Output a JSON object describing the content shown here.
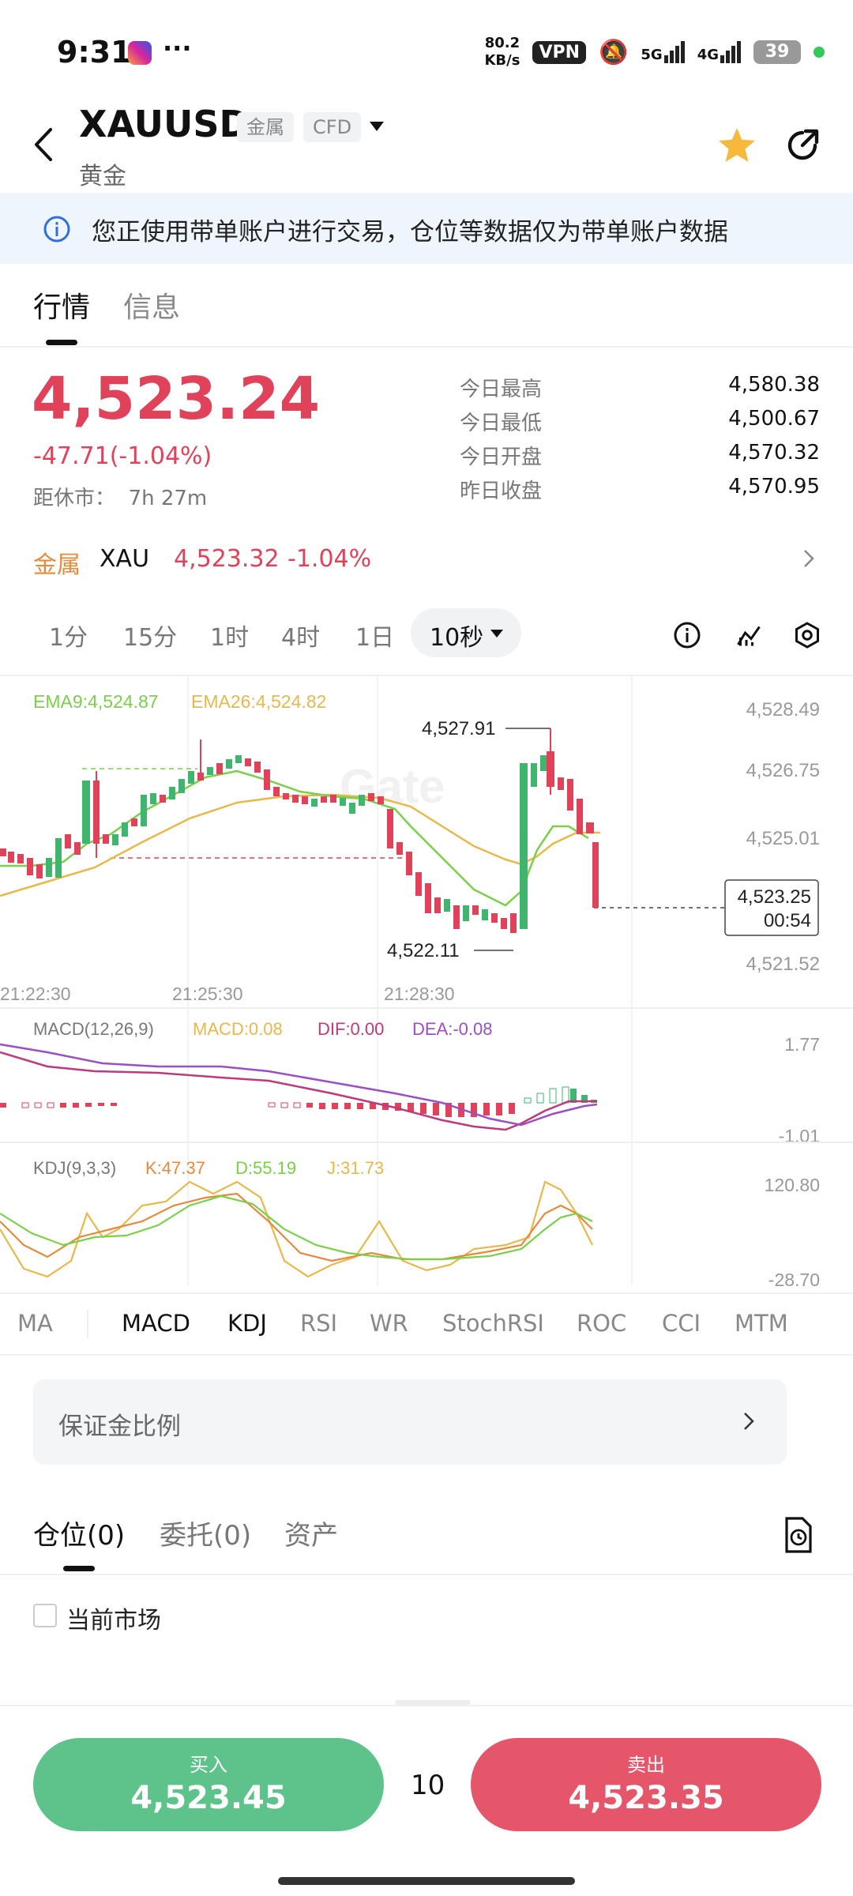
{
  "status_bar": {
    "time": "9:31",
    "more": "···",
    "net_speed_value": "80.2",
    "net_speed_unit": "KB/s",
    "vpn": "VPN",
    "sig5g": "5G",
    "sig4g": "4G",
    "battery": "39"
  },
  "header": {
    "symbol": "XAUUSD",
    "tag_metal": "金属",
    "tag_cfd": "CFD",
    "name": "黄金"
  },
  "notice": {
    "text": "您正使用带单账户进行交易，仓位等数据仅为带单账户数据"
  },
  "tabs": [
    {
      "label": "行情"
    },
    {
      "label": "信息"
    }
  ],
  "quote": {
    "price": "4,523.24",
    "change": "-47.71(-1.04%)",
    "close_label": "距休市：",
    "close_value": "7h 27m",
    "stats": [
      {
        "label": "今日最高",
        "value": "4,580.38"
      },
      {
        "label": "今日最低",
        "value": "4,500.67"
      },
      {
        "label": "今日开盘",
        "value": "4,570.32"
      },
      {
        "label": "昨日收盘",
        "value": "4,570.95"
      }
    ]
  },
  "underlying": {
    "category": "金属",
    "symbol": "XAU",
    "price": "4,523.32",
    "change": "-1.04%"
  },
  "intervals": [
    {
      "label": "1分"
    },
    {
      "label": "15分"
    },
    {
      "label": "1时"
    },
    {
      "label": "4时"
    },
    {
      "label": "1日"
    }
  ],
  "active_interval": "10秒",
  "chart": {
    "ema9": "EMA9:4,524.87",
    "ema26": "EMA26:4,524.82",
    "watermark": "Gate",
    "high_marker": "4,527.91",
    "low_marker": "4,522.11",
    "current_price": "4,523.25",
    "countdown": "00:54",
    "y_labels": [
      "4,528.49",
      "4,526.75",
      "4,525.01",
      "4,521.52"
    ],
    "x_labels": [
      "21:22:30",
      "21:25:30",
      "21:28:30"
    ],
    "macd_title": "MACD(12,26,9)",
    "macd_val": "MACD:0.08",
    "dif_val": "DIF:0.00",
    "dea_val": "DEA:-0.08",
    "macd_max": "1.77",
    "macd_min": "-1.01",
    "kdj_title": "KDJ(9,3,3)",
    "k_val": "K:47.37",
    "d_val": "D:55.19",
    "j_val": "J:31.73",
    "kdj_max": "120.80",
    "kdj_min": "-28.70",
    "colors": {
      "up": "#3fb56d",
      "down": "#e04259",
      "ema9": "#7bd04a",
      "ema26": "#e8b84a",
      "dif": "#c0397a",
      "dea": "#9b4fc4"
    }
  },
  "indicators": [
    {
      "label": "MA"
    },
    {
      "label": "MACD"
    },
    {
      "label": "KDJ"
    },
    {
      "label": "RSI"
    },
    {
      "label": "WR"
    },
    {
      "label": "StochRSI"
    },
    {
      "label": "ROC"
    },
    {
      "label": "CCI"
    },
    {
      "label": "MTM"
    }
  ],
  "margin_ratio": {
    "label": "保证金比例"
  },
  "position_tabs": [
    {
      "label": "仓位(0)"
    },
    {
      "label": "委托(0)"
    },
    {
      "label": "资产"
    }
  ],
  "current_market": "当前市场",
  "trade": {
    "buy_label": "买入",
    "buy_price": "4,523.45",
    "sell_label": "卖出",
    "sell_price": "4,523.35",
    "quantity": "10"
  }
}
